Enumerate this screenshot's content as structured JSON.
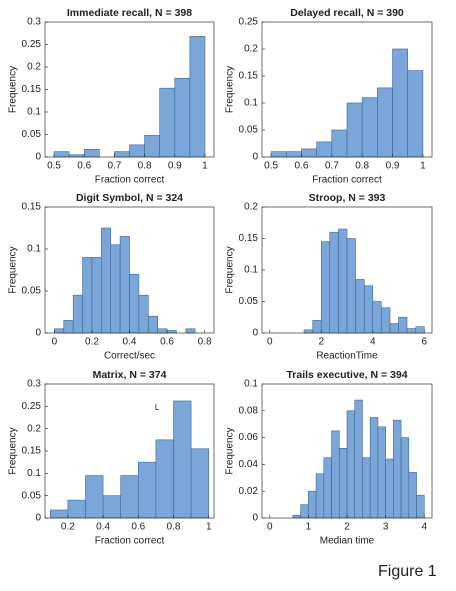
{
  "chart_data": [
    {
      "type": "histogram",
      "title": "Immediate recall, N = 398",
      "xlabel": "Fraction correct",
      "ylabel": "Frequency",
      "color": "#7aa6d9",
      "bins": [
        0.5,
        0.55,
        0.6,
        0.65,
        0.7,
        0.75,
        0.8,
        0.85,
        0.9,
        0.95,
        1.0
      ],
      "values": [
        0.012,
        0.005,
        0.017,
        0,
        0.012,
        0.027,
        0.048,
        0.153,
        0.175,
        0.268
      ],
      "xlim": [
        0.47,
        1.03
      ],
      "ylim": [
        0,
        0.3
      ],
      "xticks": [
        0.5,
        0.6,
        0.7,
        0.8,
        0.9,
        1
      ],
      "yticks": [
        0,
        0.05,
        0.1,
        0.15,
        0.2,
        0.25,
        0.3
      ]
    },
    {
      "type": "histogram",
      "title": "Delayed recall, N = 390",
      "xlabel": "Fraction correct",
      "ylabel": "Frequency",
      "color": "#7aa6d9",
      "bins": [
        0.5,
        0.55,
        0.6,
        0.65,
        0.7,
        0.75,
        0.8,
        0.85,
        0.9,
        0.95,
        1.0
      ],
      "values": [
        0.01,
        0.01,
        0.015,
        0.028,
        0.05,
        0.1,
        0.11,
        0.128,
        0.2,
        0.16
      ],
      "xlim": [
        0.47,
        1.03
      ],
      "ylim": [
        0,
        0.25
      ],
      "xticks": [
        0.5,
        0.6,
        0.7,
        0.8,
        0.9,
        1
      ],
      "yticks": [
        0,
        0.05,
        0.1,
        0.15,
        0.2,
        0.25
      ]
    },
    {
      "type": "histogram",
      "title": "Digit Symbol, N = 324",
      "xlabel": "Correct/sec",
      "ylabel": "Frequency",
      "color": "#7aa6d9",
      "bins": [
        0,
        0.05,
        0.1,
        0.15,
        0.2,
        0.25,
        0.3,
        0.35,
        0.4,
        0.45,
        0.5,
        0.55,
        0.6,
        0.65,
        0.7,
        0.75
      ],
      "values": [
        0.005,
        0.015,
        0.045,
        0.09,
        0.09,
        0.125,
        0.105,
        0.115,
        0.07,
        0.045,
        0.02,
        0.005,
        0.003,
        0,
        0.005
      ],
      "xlim": [
        -0.05,
        0.85
      ],
      "ylim": [
        0,
        0.15
      ],
      "xticks": [
        0,
        0.2,
        0.4,
        0.6,
        0.8
      ],
      "yticks": [
        0,
        0.05,
        0.1,
        0.15
      ]
    },
    {
      "type": "histogram",
      "title": "Stroop, N = 393",
      "xlabel": "ReactionTime",
      "ylabel": "Frequency",
      "color": "#7aa6d9",
      "bins": [
        1.33,
        1.67,
        2,
        2.33,
        2.67,
        3,
        3.33,
        3.67,
        4,
        4.33,
        4.67,
        5,
        5.33,
        5.67,
        6
      ],
      "values": [
        0.005,
        0.02,
        0.145,
        0.16,
        0.165,
        0.15,
        0.085,
        0.075,
        0.05,
        0.04,
        0.015,
        0.025,
        0.007,
        0.01
      ],
      "xlim": [
        -0.3,
        6.3
      ],
      "ylim": [
        0,
        0.2
      ],
      "xticks": [
        0,
        2,
        4,
        6
      ],
      "yticks": [
        0,
        0.05,
        0.1,
        0.15,
        0.2
      ]
    },
    {
      "type": "histogram",
      "title": "Matrix, N = 374",
      "xlabel": "Fraction correct",
      "ylabel": "Frequency",
      "color": "#7aa6d9",
      "annotation": "L",
      "bins": [
        0.1,
        0.2,
        0.3,
        0.4,
        0.5,
        0.6,
        0.7,
        0.8,
        0.9,
        1.0
      ],
      "values": [
        0.018,
        0.04,
        0.095,
        0.05,
        0.095,
        0.125,
        0.175,
        0.262,
        0.155
      ],
      "xlim": [
        0.07,
        1.03
      ],
      "ylim": [
        0,
        0.3
      ],
      "xticks": [
        0.2,
        0.4,
        0.6,
        0.8,
        1
      ],
      "yticks": [
        0,
        0.05,
        0.1,
        0.15,
        0.2,
        0.25,
        0.3
      ]
    },
    {
      "type": "histogram",
      "title": "Trails executive, N = 394",
      "xlabel": "Median time",
      "ylabel": "Frequency",
      "color": "#7aa6d9",
      "bins": [
        0.6,
        0.8,
        1.0,
        1.2,
        1.4,
        1.6,
        1.8,
        2.0,
        2.2,
        2.4,
        2.6,
        2.8,
        3.0,
        3.2,
        3.4,
        3.6,
        3.8,
        4.0
      ],
      "values": [
        0.002,
        0.01,
        0.02,
        0.033,
        0.045,
        0.065,
        0.052,
        0.08,
        0.088,
        0.045,
        0.075,
        0.068,
        0.044,
        0.073,
        0.06,
        0.034,
        0.017
      ],
      "xlim": [
        -0.2,
        4.2
      ],
      "ylim": [
        0,
        0.1
      ],
      "xticks": [
        0,
        1,
        2,
        3,
        4
      ],
      "yticks": [
        0,
        0.02,
        0.04,
        0.06,
        0.08,
        0.1
      ]
    }
  ],
  "caption": "Figure 1"
}
